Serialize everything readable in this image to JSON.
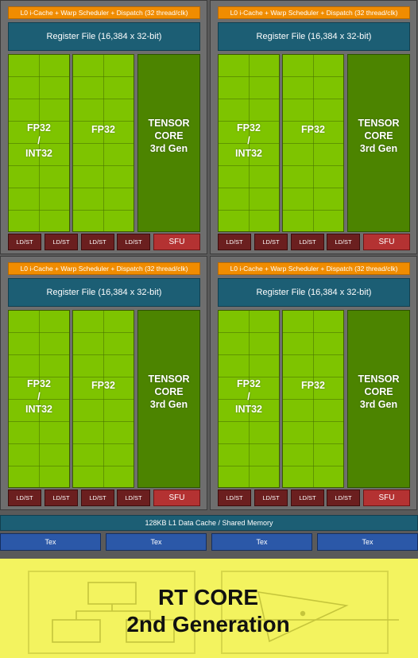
{
  "sm": {
    "l0_label": "L0 i-Cache + Warp Scheduler + Dispatch (32 thread/clk)",
    "register_file": "Register File (16,384 x 32-bit)",
    "fp32_int32": [
      "FP32",
      "/",
      "INT32"
    ],
    "fp32": "FP32",
    "tensor_core": [
      "TENSOR",
      "CORE",
      "3rd Gen"
    ],
    "ldst": "LD/ST",
    "sfu": "SFU"
  },
  "l1_cache": "128KB L1 Data Cache / Shared Memory",
  "tex": [
    "Tex",
    "Tex",
    "Tex",
    "Tex"
  ],
  "rt_core": {
    "line1": "RT CORE",
    "line2": "2nd Generation"
  },
  "colors": {
    "scheduler": "#f08c00",
    "register_file": "#1c5e74",
    "fp32": "#7ec400",
    "tensor": "#4c8400",
    "ldst": "#6b1f1f",
    "sfu": "#b43232",
    "tex": "#2b58a8",
    "rt_core": "#f3f35f"
  }
}
